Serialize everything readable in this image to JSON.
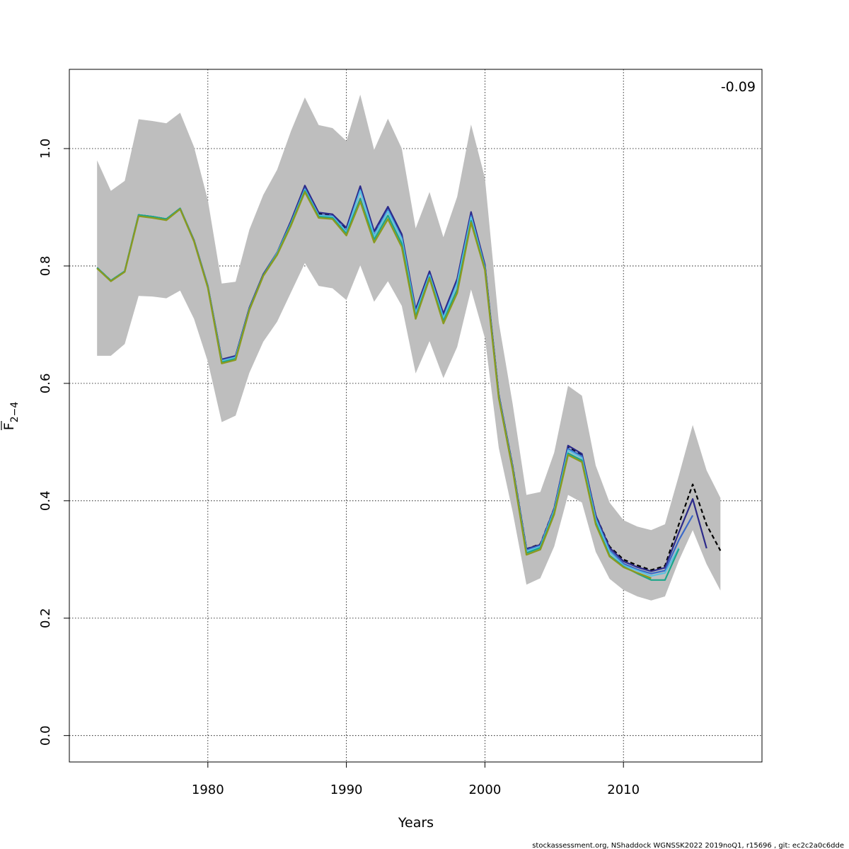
{
  "chart_data": {
    "type": "line",
    "xlabel": "Years",
    "ylabel_main": "F",
    "ylabel_sub": "2−4",
    "annotation": "-0.09",
    "footer": "stockassessment.org, NShaddock  WGNSSK2022  2019noQ1, r15696 , git: ec2c2a0c6dde",
    "xlim": [
      1970,
      2020
    ],
    "ylim": [
      -0.045,
      1.135
    ],
    "x_ticks": [
      1980,
      1990,
      2000,
      2010
    ],
    "x_tick_labels": [
      "1980",
      "1990",
      "2000",
      "2010"
    ],
    "y_ticks": [
      0.0,
      0.2,
      0.4,
      0.6,
      0.8,
      1.0
    ],
    "y_tick_labels": [
      "0.0",
      "0.2",
      "0.4",
      "0.6",
      "0.8",
      "1.0"
    ],
    "grid": true,
    "band_color": "#bebebe",
    "band": {
      "years": [
        1972,
        1973,
        1974,
        1975,
        1976,
        1977,
        1978,
        1979,
        1980,
        1981,
        1982,
        1983,
        1984,
        1985,
        1986,
        1987,
        1988,
        1989,
        1990,
        1991,
        1992,
        1993,
        1994,
        1995,
        1996,
        1997,
        1998,
        1999,
        2000,
        2001,
        2002,
        2003,
        2004,
        2005,
        2006,
        2007,
        2008,
        2009,
        2010,
        2011,
        2012,
        2013,
        2014,
        2015,
        2016,
        2017
      ],
      "upper": [
        0.98,
        0.928,
        0.945,
        1.05,
        1.047,
        1.043,
        1.061,
        1.003,
        0.912,
        0.77,
        0.773,
        0.862,
        0.921,
        0.964,
        1.03,
        1.087,
        1.04,
        1.035,
        1.013,
        1.092,
        0.998,
        1.051,
        1.0,
        0.864,
        0.926,
        0.849,
        0.918,
        1.041,
        0.95,
        0.704,
        0.565,
        0.41,
        0.415,
        0.482,
        0.596,
        0.579,
        0.46,
        0.397,
        0.367,
        0.356,
        0.35,
        0.36,
        0.443,
        0.529,
        0.452,
        0.405
      ],
      "lower": [
        0.647,
        0.647,
        0.667,
        0.749,
        0.748,
        0.745,
        0.758,
        0.71,
        0.637,
        0.534,
        0.545,
        0.618,
        0.671,
        0.705,
        0.755,
        0.805,
        0.766,
        0.762,
        0.742,
        0.801,
        0.739,
        0.774,
        0.732,
        0.617,
        0.672,
        0.609,
        0.662,
        0.76,
        0.677,
        0.49,
        0.381,
        0.257,
        0.268,
        0.322,
        0.41,
        0.397,
        0.313,
        0.267,
        0.248,
        0.237,
        0.23,
        0.237,
        0.298,
        0.35,
        0.292,
        0.247
      ]
    },
    "series": [
      {
        "color": "#000000",
        "dashed": true,
        "width": 2.2,
        "x": [
          1972,
          1973,
          1974,
          1975,
          1976,
          1977,
          1978,
          1979,
          1980,
          1981,
          1982,
          1983,
          1984,
          1985,
          1986,
          1987,
          1988,
          1989,
          1990,
          1991,
          1992,
          1993,
          1994,
          1995,
          1996,
          1997,
          1998,
          1999,
          2000,
          2001,
          2002,
          2003,
          2004,
          2005,
          2006,
          2007,
          2008,
          2009,
          2010,
          2011,
          2012,
          2013,
          2014,
          2015,
          2016,
          2017
        ],
        "y": [
          0.797,
          0.775,
          0.791,
          0.887,
          0.884,
          0.88,
          0.898,
          0.843,
          0.765,
          0.64,
          0.646,
          0.728,
          0.785,
          0.822,
          0.875,
          0.934,
          0.889,
          0.886,
          0.862,
          0.933,
          0.857,
          0.899,
          0.852,
          0.723,
          0.789,
          0.717,
          0.776,
          0.89,
          0.8,
          0.58,
          0.459,
          0.318,
          0.326,
          0.387,
          0.491,
          0.478,
          0.375,
          0.322,
          0.3,
          0.29,
          0.282,
          0.289,
          0.36,
          0.428,
          0.359,
          0.315
        ]
      },
      {
        "color": "#2c2a8a",
        "dashed": false,
        "width": 2.2,
        "x": [
          1972,
          1973,
          1974,
          1975,
          1976,
          1977,
          1978,
          1979,
          1980,
          1981,
          1982,
          1983,
          1984,
          1985,
          1986,
          1987,
          1988,
          1989,
          1990,
          1991,
          1992,
          1993,
          1994,
          1995,
          1996,
          1997,
          1998,
          1999,
          2000,
          2001,
          2002,
          2003,
          2004,
          2005,
          2006,
          2007,
          2008,
          2009,
          2010,
          2011,
          2012,
          2013,
          2014,
          2015,
          2016
        ],
        "y": [
          0.797,
          0.775,
          0.791,
          0.887,
          0.884,
          0.88,
          0.898,
          0.844,
          0.766,
          0.641,
          0.647,
          0.729,
          0.786,
          0.823,
          0.877,
          0.937,
          0.891,
          0.888,
          0.865,
          0.936,
          0.859,
          0.901,
          0.854,
          0.726,
          0.791,
          0.719,
          0.778,
          0.892,
          0.802,
          0.581,
          0.459,
          0.318,
          0.325,
          0.387,
          0.494,
          0.48,
          0.375,
          0.32,
          0.297,
          0.287,
          0.28,
          0.286,
          0.346,
          0.403,
          0.319
        ]
      },
      {
        "color": "#3b69c8",
        "dashed": false,
        "width": 2.2,
        "x": [
          1972,
          1973,
          1974,
          1975,
          1976,
          1977,
          1978,
          1979,
          1980,
          1981,
          1982,
          1983,
          1984,
          1985,
          1986,
          1987,
          1988,
          1989,
          1990,
          1991,
          1992,
          1993,
          1994,
          1995,
          1996,
          1997,
          1998,
          1999,
          2000,
          2001,
          2002,
          2003,
          2004,
          2005,
          2006,
          2007,
          2008,
          2009,
          2010,
          2011,
          2012,
          2013,
          2014,
          2015
        ],
        "y": [
          0.797,
          0.775,
          0.791,
          0.887,
          0.884,
          0.88,
          0.898,
          0.843,
          0.765,
          0.639,
          0.645,
          0.727,
          0.784,
          0.821,
          0.873,
          0.932,
          0.887,
          0.885,
          0.86,
          0.93,
          0.853,
          0.896,
          0.848,
          0.721,
          0.786,
          0.713,
          0.772,
          0.886,
          0.798,
          0.579,
          0.457,
          0.316,
          0.324,
          0.385,
          0.489,
          0.476,
          0.371,
          0.316,
          0.293,
          0.283,
          0.276,
          0.281,
          0.333,
          0.375
        ]
      },
      {
        "color": "#5bc0e0",
        "dashed": false,
        "width": 2.2,
        "x": [
          1972,
          1973,
          1974,
          1975,
          1976,
          1977,
          1978,
          1979,
          1980,
          1981,
          1982,
          1983,
          1984,
          1985,
          1986,
          1987,
          1988,
          1989,
          1990,
          1991,
          1992,
          1993,
          1994,
          1995,
          1996,
          1997,
          1998,
          1999,
          2000,
          2001,
          2002,
          2003,
          2004,
          2005,
          2006,
          2007,
          2008,
          2009,
          2010,
          2011,
          2012,
          2013,
          2014
        ],
        "y": [
          0.797,
          0.775,
          0.791,
          0.887,
          0.884,
          0.88,
          0.898,
          0.843,
          0.765,
          0.638,
          0.644,
          0.727,
          0.784,
          0.822,
          0.873,
          0.93,
          0.886,
          0.884,
          0.858,
          0.928,
          0.851,
          0.893,
          0.846,
          0.719,
          0.784,
          0.711,
          0.77,
          0.883,
          0.797,
          0.578,
          0.456,
          0.314,
          0.322,
          0.383,
          0.486,
          0.473,
          0.368,
          0.313,
          0.29,
          0.281,
          0.272,
          0.277,
          0.32
        ]
      },
      {
        "color": "#1aa68a",
        "dashed": false,
        "width": 2.2,
        "x": [
          1972,
          1973,
          1974,
          1975,
          1976,
          1977,
          1978,
          1979,
          1980,
          1981,
          1982,
          1983,
          1984,
          1985,
          1986,
          1987,
          1988,
          1989,
          1990,
          1991,
          1992,
          1993,
          1994,
          1995,
          1996,
          1997,
          1998,
          1999,
          2000,
          2001,
          2002,
          2003,
          2004,
          2005,
          2006,
          2007,
          2008,
          2009,
          2010,
          2011,
          2012,
          2013,
          2014
        ],
        "y": [
          0.797,
          0.775,
          0.791,
          0.887,
          0.884,
          0.88,
          0.898,
          0.843,
          0.764,
          0.636,
          0.642,
          0.726,
          0.784,
          0.82,
          0.871,
          0.928,
          0.884,
          0.882,
          0.855,
          0.915,
          0.845,
          0.886,
          0.838,
          0.714,
          0.781,
          0.706,
          0.76,
          0.877,
          0.795,
          0.576,
          0.454,
          0.311,
          0.32,
          0.38,
          0.481,
          0.469,
          0.363,
          0.307,
          0.288,
          0.276,
          0.265,
          0.265,
          0.318
        ]
      },
      {
        "color": "#8a9a20",
        "dashed": false,
        "width": 2.4,
        "x": [
          1972,
          1973,
          1974,
          1975,
          1976,
          1977,
          1978,
          1979,
          1980,
          1981,
          1982,
          1983,
          1984,
          1985,
          1986,
          1987,
          1988,
          1989,
          1990,
          1991,
          1992,
          1993,
          1994,
          1995,
          1996,
          1997,
          1998,
          1999,
          2000,
          2001,
          2002,
          2003,
          2004,
          2005,
          2006,
          2007,
          2008,
          2009,
          2010,
          2011,
          2012
        ],
        "y": [
          0.796,
          0.774,
          0.79,
          0.885,
          0.882,
          0.878,
          0.897,
          0.842,
          0.763,
          0.634,
          0.64,
          0.725,
          0.783,
          0.819,
          0.869,
          0.926,
          0.882,
          0.88,
          0.852,
          0.91,
          0.84,
          0.88,
          0.832,
          0.71,
          0.779,
          0.702,
          0.754,
          0.874,
          0.793,
          0.575,
          0.453,
          0.308,
          0.317,
          0.377,
          0.478,
          0.466,
          0.36,
          0.305,
          0.287,
          0.277,
          0.268
        ]
      }
    ]
  }
}
